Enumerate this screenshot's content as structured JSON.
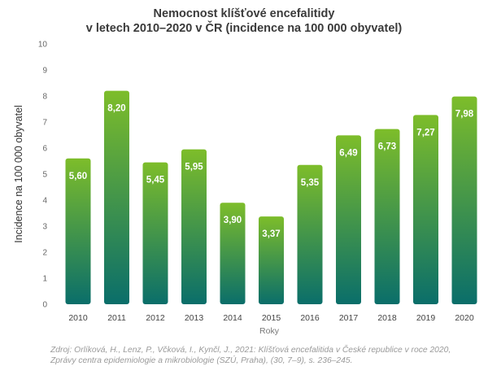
{
  "chart_data": {
    "type": "bar",
    "title_lines": [
      "Nemocnost klíšťové encefalitidy",
      "v letech 2010–2020 v ČR (incidence na 100 000 obyvatel)"
    ],
    "xlabel": "Roky",
    "ylabel": "Incidence na 100 000 obyvatel",
    "categories": [
      "2010",
      "2011",
      "2012",
      "2013",
      "2014",
      "2015",
      "2016",
      "2017",
      "2018",
      "2019",
      "2020"
    ],
    "values": [
      5.6,
      8.2,
      5.45,
      5.95,
      3.9,
      3.37,
      5.35,
      6.49,
      6.73,
      7.27,
      7.98
    ],
    "value_labels": [
      "5,60",
      "8,20",
      "5,45",
      "5,95",
      "3,90",
      "3,37",
      "5,35",
      "6,49",
      "6,73",
      "7,27",
      "7,98"
    ],
    "ylim": [
      0,
      10
    ],
    "yticks": [
      0,
      1,
      2,
      3,
      4,
      5,
      6,
      7,
      8,
      9,
      10
    ],
    "grid": false,
    "legend": "none",
    "colors": {
      "bar_top": "#7dbd2a",
      "bar_bottom": "#0a6e6a",
      "label": "#ffffff",
      "axis_text": "#666666"
    }
  },
  "source_note_lines": [
    "Zdroj: Orlíková, H., Lenz, P., Včková, I., Kynčl, J., 2021: Klíšťová encefalitida v České republice v roce 2020,",
    "Zprávy centra epidemiologie a mikrobiologie (SZÚ, Praha), (30, 7–9), s. 236–245."
  ]
}
